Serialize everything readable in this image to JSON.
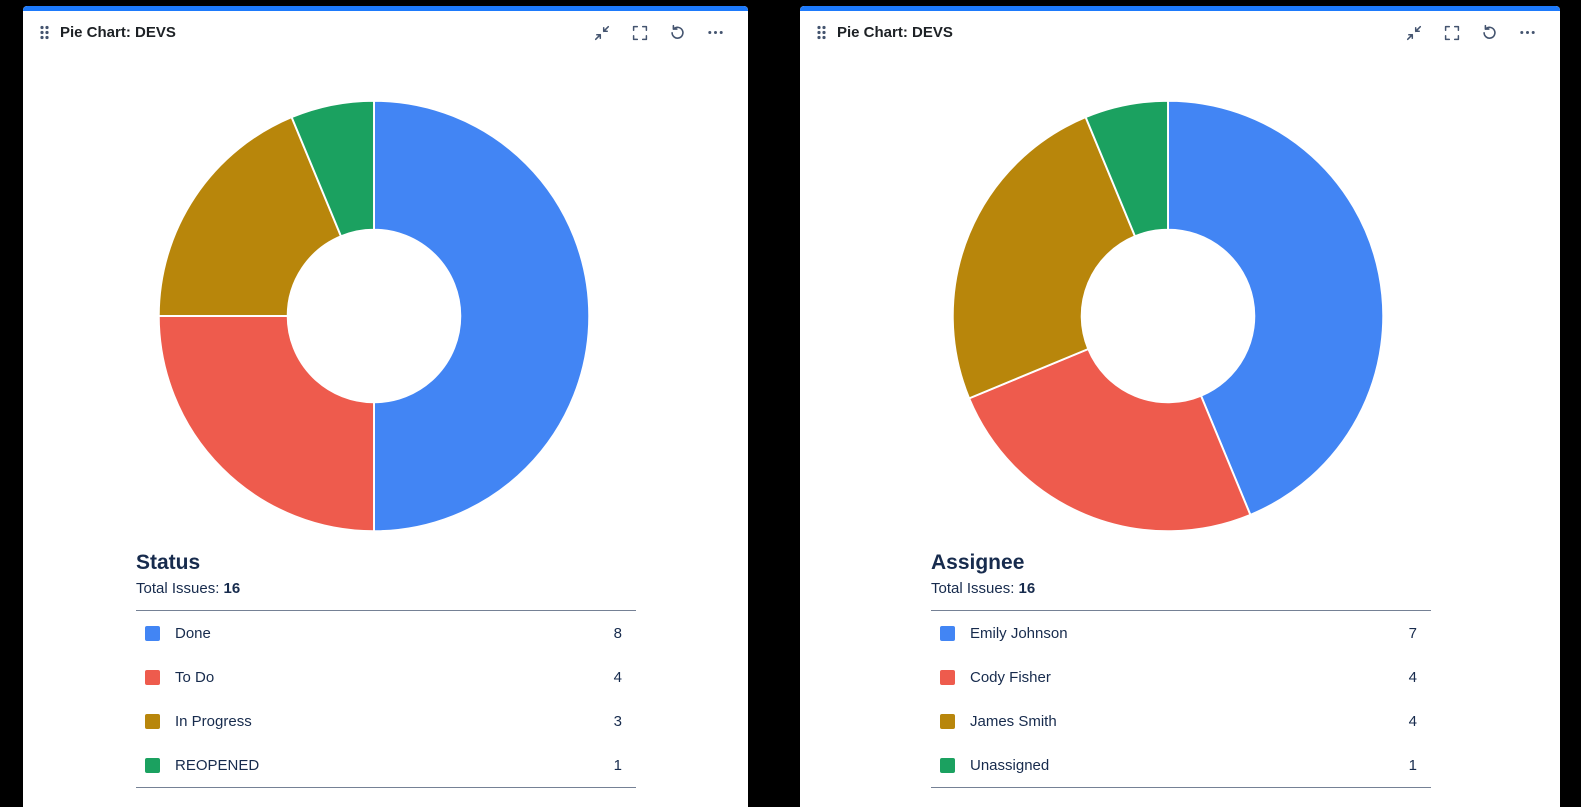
{
  "window": {
    "background": "#000000",
    "card_accent": "#1d7afc",
    "icon_color": "#44546f"
  },
  "panels": [
    {
      "title": "Pie Chart: DEVS",
      "section_title": "Status",
      "total_label": "Total Issues:",
      "total_value": "16",
      "toolbar_icons": [
        "drag-handle-icon",
        "collapse-icon",
        "fullscreen-icon",
        "refresh-icon",
        "more-icon"
      ]
    },
    {
      "title": "Pie Chart: DEVS",
      "section_title": "Assignee",
      "total_label": "Total Issues:",
      "total_value": "16",
      "toolbar_icons": [
        "drag-handle-icon",
        "collapse-icon",
        "fullscreen-icon",
        "refresh-icon",
        "more-icon"
      ]
    }
  ],
  "chart_data": [
    {
      "type": "pie",
      "donut": true,
      "title": "Status",
      "total_issues": 16,
      "categories": [
        "Done",
        "To Do",
        "In Progress",
        "REOPENED"
      ],
      "values": [
        8,
        4,
        3,
        1
      ],
      "colors": [
        "#4285f4",
        "#ee5b4d",
        "#b8860b",
        "#1ba160"
      ],
      "start_angle_deg": 0,
      "direction": "clockwise",
      "legend_position": "bottom"
    },
    {
      "type": "pie",
      "donut": true,
      "title": "Assignee",
      "total_issues": 16,
      "categories": [
        "Emily Johnson",
        "Cody Fisher",
        "James Smith",
        "Unassigned"
      ],
      "values": [
        7,
        4,
        4,
        1
      ],
      "colors": [
        "#4285f4",
        "#ee5b4d",
        "#b8860b",
        "#1ba160"
      ],
      "start_angle_deg": 0,
      "direction": "clockwise",
      "legend_position": "bottom"
    }
  ]
}
